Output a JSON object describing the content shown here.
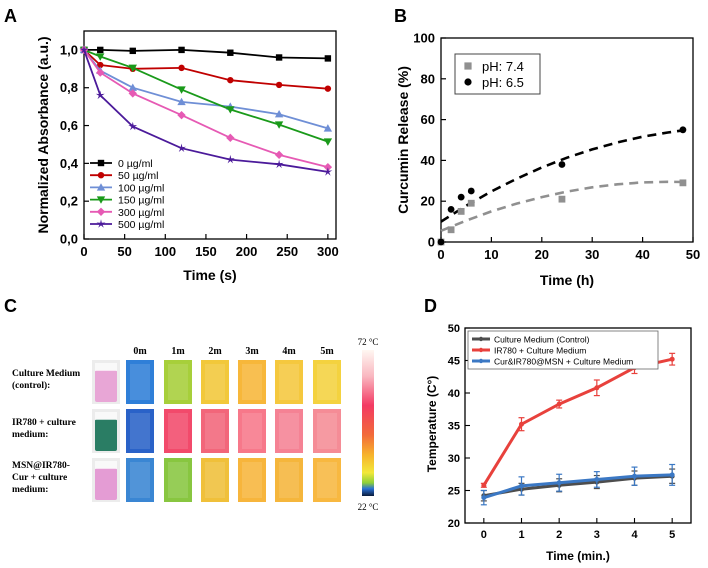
{
  "panels": {
    "a": "A",
    "b": "B",
    "c": "C",
    "d": "D"
  },
  "chart_data": [
    {
      "id": "A",
      "type": "line",
      "xlabel": "Time (s)",
      "ylabel": "Normalized Absorbance (a.u.)",
      "xlim": [
        0,
        310
      ],
      "ylim": [
        0,
        1.1
      ],
      "xticks": [
        "0",
        "50",
        "100",
        "150",
        "200",
        "250",
        "300"
      ],
      "xtick_values": [
        0,
        50,
        100,
        150,
        200,
        250,
        300
      ],
      "yticks": [
        "0,0",
        "0,2",
        "0,4",
        "0,6",
        "0,8",
        "1,0"
      ],
      "ytick_values": [
        0,
        0.2,
        0.4,
        0.6,
        0.8,
        1.0
      ],
      "x": [
        0,
        20,
        60,
        120,
        180,
        240,
        300
      ],
      "series": [
        {
          "name": "0 µg/ml",
          "color": "#000000",
          "marker": "square",
          "values": [
            1.0,
            1.0,
            0.995,
            1.0,
            0.985,
            0.96,
            0.955
          ]
        },
        {
          "name": "50 µg/ml",
          "color": "#c00000",
          "marker": "circle",
          "values": [
            1.0,
            0.92,
            0.9,
            0.905,
            0.84,
            0.815,
            0.795
          ]
        },
        {
          "name": "100 µg/ml",
          "color": "#6f8fd6",
          "marker": "triangle-up",
          "values": [
            1.0,
            0.89,
            0.8,
            0.725,
            0.7,
            0.66,
            0.585
          ]
        },
        {
          "name": "150 µg/ml",
          "color": "#1a9a1a",
          "marker": "triangle-down",
          "values": [
            1.0,
            0.965,
            0.905,
            0.79,
            0.685,
            0.605,
            0.515
          ]
        },
        {
          "name": "300 µg/ml",
          "color": "#e65ab4",
          "marker": "diamond",
          "values": [
            1.0,
            0.88,
            0.77,
            0.655,
            0.535,
            0.445,
            0.38
          ]
        },
        {
          "name": "500 µg/ml",
          "color": "#4b1a9a",
          "marker": "star",
          "values": [
            1.0,
            0.76,
            0.595,
            0.48,
            0.42,
            0.395,
            0.355
          ]
        }
      ]
    },
    {
      "id": "B",
      "type": "scatter",
      "xlabel": "Time (h)",
      "ylabel": "Curcumin Release (%)",
      "xlim": [
        0,
        50
      ],
      "ylim": [
        0,
        100
      ],
      "xticks": [
        "0",
        "10",
        "20",
        "30",
        "40",
        "50"
      ],
      "xtick_values": [
        0,
        10,
        20,
        30,
        40,
        50
      ],
      "yticks": [
        "0",
        "20",
        "40",
        "60",
        "80",
        "100"
      ],
      "ytick_values": [
        0,
        20,
        40,
        60,
        80,
        100
      ],
      "series": [
        {
          "name": "pH: 7.4",
          "color": "#909090",
          "marker": "square",
          "x": [
            0,
            2,
            4,
            6,
            24,
            48
          ],
          "values": [
            0,
            6,
            15,
            19,
            21,
            29
          ],
          "fit_x": [
            0,
            5,
            10,
            15,
            20,
            25,
            30,
            35,
            40,
            45,
            48
          ],
          "fit_y": [
            5.5,
            10.5,
            15,
            18.8,
            22,
            24.7,
            26.8,
            28.3,
            29.2,
            29.5,
            29.4
          ]
        },
        {
          "name": "pH: 6.5",
          "color": "#000000",
          "marker": "circle",
          "x": [
            0,
            2,
            4,
            6,
            24,
            48
          ],
          "values": [
            0,
            16,
            22,
            25,
            38,
            55
          ],
          "fit_x": [
            0,
            5,
            10,
            15,
            20,
            25,
            30,
            35,
            40,
            45,
            48
          ],
          "fit_y": [
            10,
            17.8,
            24.8,
            31,
            36.5,
            41.3,
            45.4,
            48.8,
            51.6,
            53.7,
            54.7
          ]
        }
      ]
    },
    {
      "id": "D",
      "type": "line",
      "xlabel": "Time (min.)",
      "ylabel": "Temperature (C°)",
      "xlim": [
        -0.5,
        5.5
      ],
      "ylim": [
        20,
        50
      ],
      "xticks": [
        "0",
        "1",
        "2",
        "3",
        "4",
        "5"
      ],
      "xtick_values": [
        0,
        1,
        2,
        3,
        4,
        5
      ],
      "yticks": [
        "20",
        "25",
        "30",
        "35",
        "40",
        "45",
        "50"
      ],
      "ytick_values": [
        20,
        25,
        30,
        35,
        40,
        45,
        50
      ],
      "x": [
        0,
        1,
        2,
        3,
        4,
        5
      ],
      "series": [
        {
          "name": "Culture Medium (Control)",
          "color": "#4d4d4d",
          "values": [
            24.2,
            25.2,
            25.8,
            26.3,
            26.9,
            27.2
          ],
          "err": [
            0.8,
            0.9,
            1.0,
            1.0,
            1.1,
            1.1
          ]
        },
        {
          "name": "IR780 + Culture Medium",
          "color": "#e8413c",
          "values": [
            25.8,
            35.2,
            38.3,
            40.8,
            43.9,
            45.2
          ],
          "err": [
            0.3,
            1.0,
            0.6,
            1.2,
            0.9,
            0.9
          ]
        },
        {
          "name": "Cur&IR780@MSN + Culture Medium",
          "color": "#3b78c4",
          "values": [
            23.9,
            25.7,
            26.2,
            26.7,
            27.2,
            27.4
          ],
          "err": [
            1.1,
            1.4,
            1.3,
            1.2,
            1.4,
            1.6
          ]
        }
      ]
    }
  ],
  "panel_c": {
    "time_labels": [
      "0m",
      "1m",
      "2m",
      "3m",
      "4m",
      "5m"
    ],
    "rows": [
      {
        "label_lines": [
          "Culture Medium",
          "(control):"
        ],
        "photo_color": "#e8a6d6",
        "cells": [
          "#2f7fd8",
          "#a7cf3a",
          "#f2c83a",
          "#f7b73a",
          "#f5c83e",
          "#f4d23f"
        ]
      },
      {
        "label_lines": [
          "IR780 + culture",
          "medium:"
        ],
        "photo_color": "#2a7d64",
        "cells": [
          "#2a62c8",
          "#f24a6b",
          "#f2667a",
          "#f7788a",
          "#f58294",
          "#f58c96"
        ]
      },
      {
        "label_lines": [
          "MSN@IR780-",
          "Cur + culture",
          "medium:"
        ],
        "photo_color": "#e49cd4",
        "cells": [
          "#3a86d3",
          "#88c640",
          "#f0c03a",
          "#f7b53c",
          "#f5b63c",
          "#f8b840"
        ]
      }
    ],
    "scale_max": "72 °C",
    "scale_min": "22 °C"
  }
}
